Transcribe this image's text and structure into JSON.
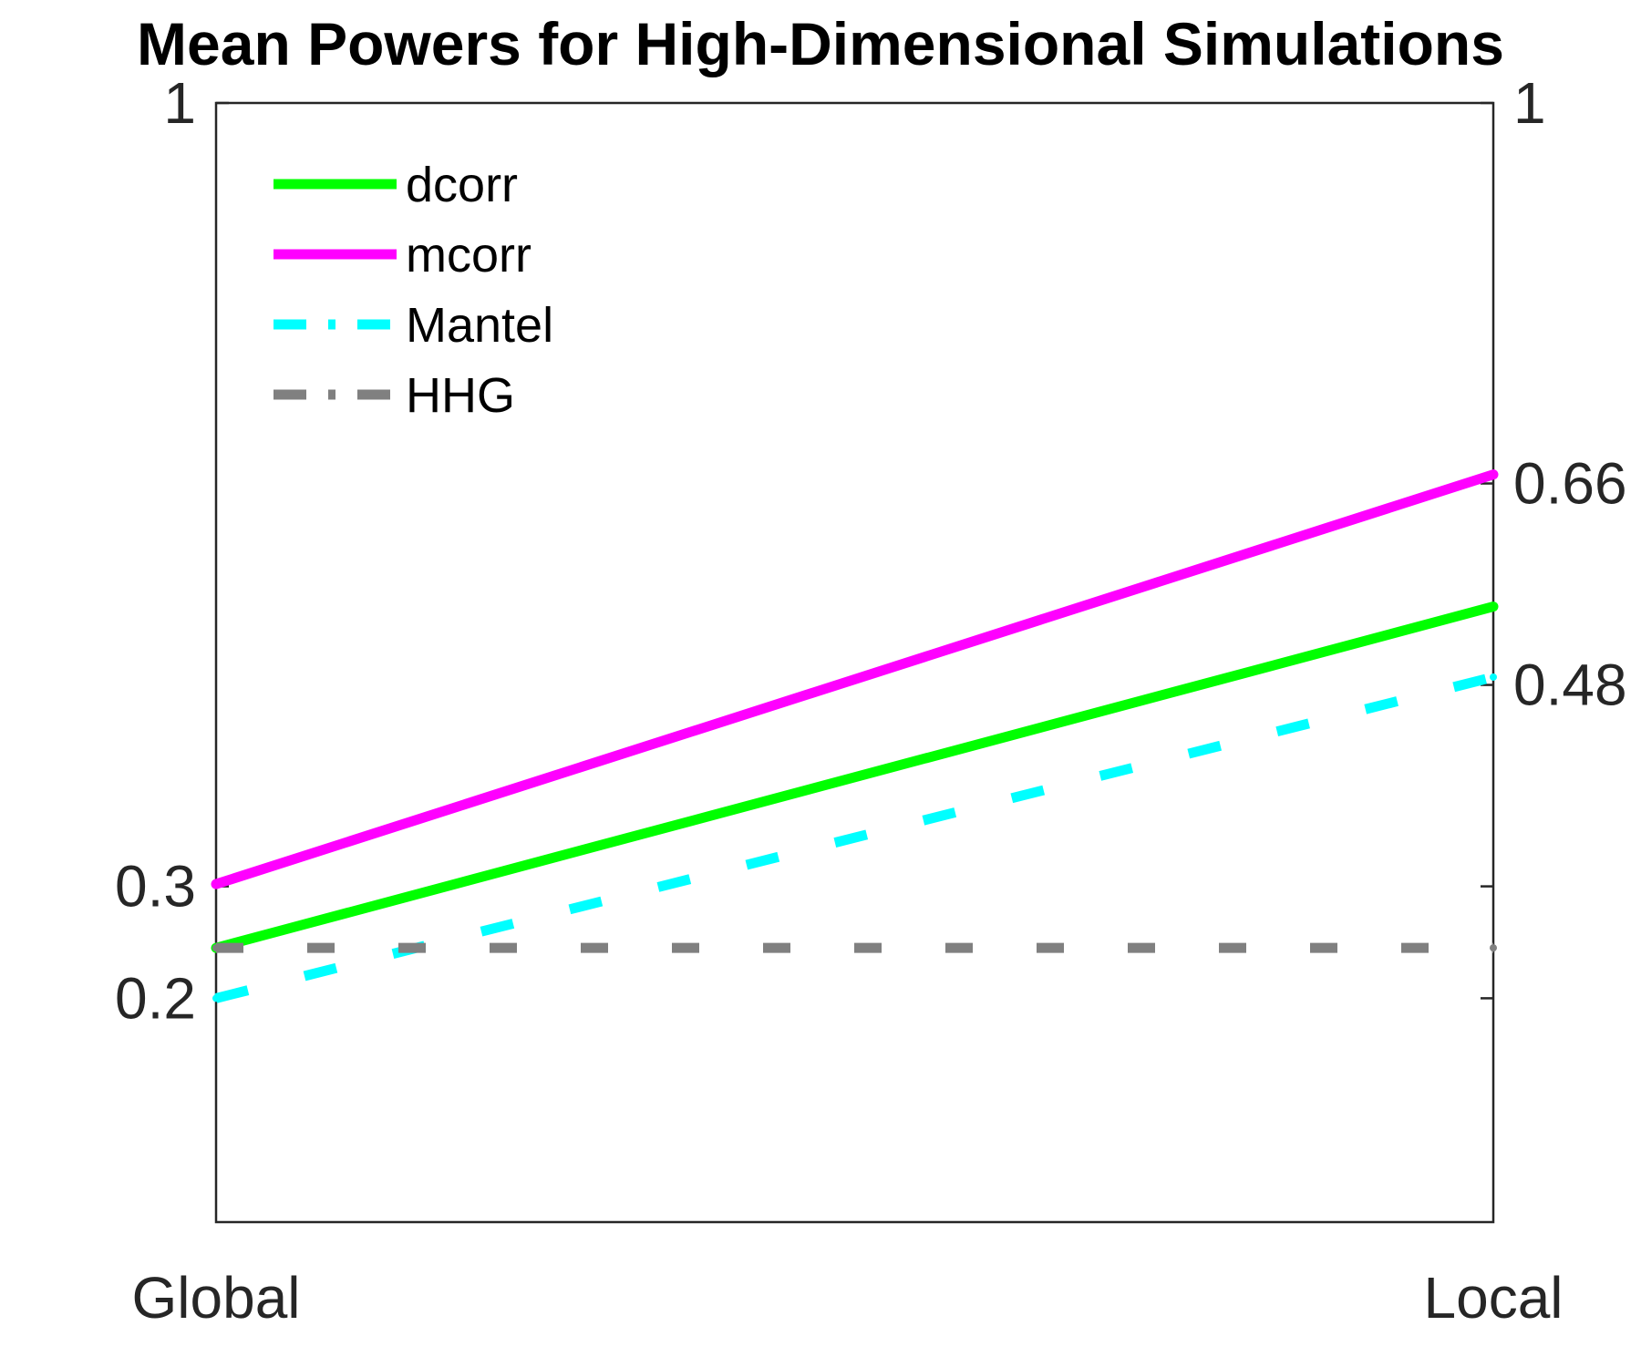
{
  "chart_data": {
    "type": "line",
    "title": "Mean Powers for High-Dimensional Simulations",
    "categories": [
      "Global",
      "Local"
    ],
    "ylim": [
      0,
      1
    ],
    "left_yticks": [
      "1",
      "0.3",
      "0.2"
    ],
    "right_yticks": [
      "1",
      "0.66",
      "0.48"
    ],
    "left_tick_values": [
      1,
      0.3,
      0.2
    ],
    "right_tick_values": [
      1,
      0.66,
      0.48
    ],
    "right_label_values": [
      1,
      0.66,
      0.48
    ],
    "unlabeled_right_tick_values": [
      0.3,
      0.2
    ],
    "series": [
      {
        "name": "dcorr",
        "values": [
          0.245,
          0.55
        ],
        "color": "#00ff00",
        "style": "solid"
      },
      {
        "name": "mcorr",
        "values": [
          0.302,
          0.668
        ],
        "color": "#ff00ff",
        "style": "solid"
      },
      {
        "name": "Mantel",
        "values": [
          0.2,
          0.487
        ],
        "color": "#00ffff",
        "style": "dash-dot"
      },
      {
        "name": "HHG",
        "values": [
          0.245,
          0.245
        ],
        "color": "#808080",
        "style": "dash-dot"
      }
    ],
    "legend": "top-left",
    "grid": false
  }
}
